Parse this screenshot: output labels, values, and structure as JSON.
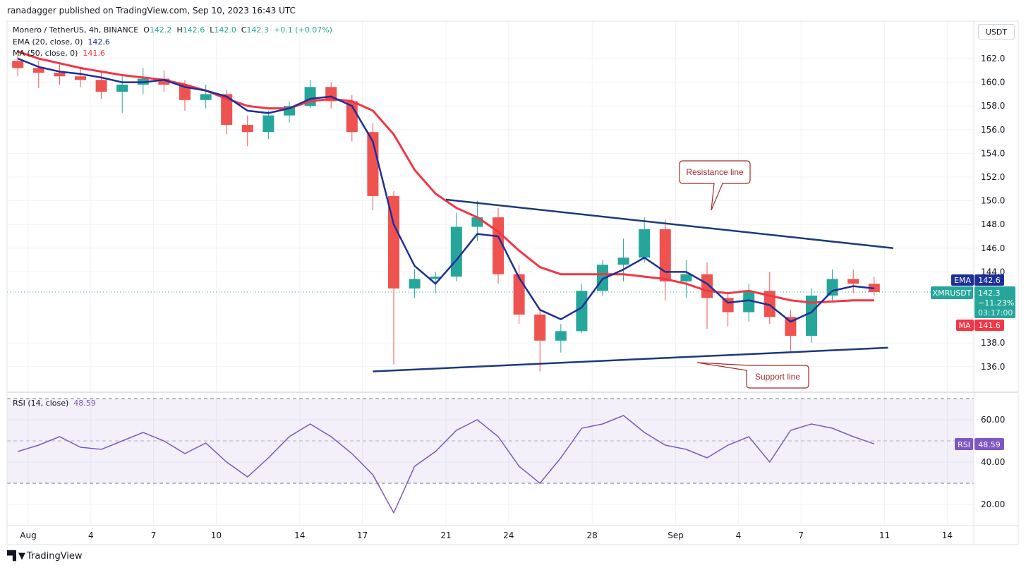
{
  "header": {
    "published": "ranadagger published on TradingView.com, Sep 10, 2023 16:43 UTC",
    "symbol": "Monero / TetherUS, 4h, BINANCE",
    "open_label": "O",
    "open": "142.2",
    "high_label": "H",
    "high": "142.6",
    "low_label": "L",
    "low": "142.0",
    "close_label": "C",
    "close": "142.3",
    "change": "+0.1 (+0.07%)",
    "ema_label": "EMA (20, close, 0)",
    "ema_value": "142.6",
    "ma_label": "MA (50, close, 0)",
    "ma_value": "141.6",
    "rsi_label": "RSI (14, close)",
    "rsi_value": "48.59"
  },
  "axis": {
    "currency": "USDT",
    "price_ticks": [
      "162.0",
      "160.0",
      "158.0",
      "156.0",
      "154.0",
      "152.0",
      "150.0",
      "148.0",
      "146.0",
      "144.0",
      "138.0",
      "136.0"
    ],
    "rsi_ticks": [
      "60.00",
      "40.00",
      "20.00"
    ],
    "time_ticks": [
      {
        "label": "Aug",
        "date": "2023-08-01"
      },
      {
        "label": "4",
        "date": "2023-08-04"
      },
      {
        "label": "7",
        "date": "2023-08-07"
      },
      {
        "label": "10",
        "date": "2023-08-10"
      },
      {
        "label": "14",
        "date": "2023-08-14"
      },
      {
        "label": "17",
        "date": "2023-08-17"
      },
      {
        "label": "21",
        "date": "2023-08-21"
      },
      {
        "label": "24",
        "date": "2023-08-24"
      },
      {
        "label": "28",
        "date": "2023-08-28"
      },
      {
        "label": "Sep",
        "date": "2023-09-01"
      },
      {
        "label": "4",
        "date": "2023-09-04"
      },
      {
        "label": "7",
        "date": "2023-09-07"
      },
      {
        "label": "11",
        "date": "2023-09-11"
      },
      {
        "label": "14",
        "date": "2023-09-14"
      }
    ]
  },
  "badges": {
    "ema_tag": "EMA",
    "ema_price": "142.6",
    "symbol_tag": "XMRUSDT",
    "last_price": "142.3",
    "last_change": "−11.23%",
    "countdown": "03:17:00",
    "ma_tag": "MA",
    "ma_price": "141.6",
    "rsi_tag": "RSI",
    "rsi_price": "48.59"
  },
  "annotations": {
    "resistance": "Resistance line",
    "support": "Support line"
  },
  "footer": {
    "brand": "TradingView"
  },
  "colors": {
    "up": "#26a69a",
    "down": "#ef5350",
    "ema": "#1e2f97",
    "ma": "#f23645",
    "rsi": "#7e57c2",
    "trendline": "#1c3a7a",
    "callout": "#a52a2a"
  },
  "chart_data": {
    "type": "candlestick",
    "interval_shown": "4h",
    "price_range": [
      135,
      163.5
    ],
    "rsi_range": [
      10,
      75
    ],
    "rsi_bands": [
      30,
      70
    ],
    "dates": [
      "2023-07-31",
      "2023-08-01",
      "2023-08-02",
      "2023-08-03",
      "2023-08-04",
      "2023-08-05",
      "2023-08-06",
      "2023-08-07",
      "2023-08-08",
      "2023-08-09",
      "2023-08-10",
      "2023-08-11",
      "2023-08-12",
      "2023-08-13",
      "2023-08-14",
      "2023-08-15",
      "2023-08-16",
      "2023-08-17",
      "2023-08-18",
      "2023-08-19",
      "2023-08-20",
      "2023-08-21",
      "2023-08-22",
      "2023-08-23",
      "2023-08-24",
      "2023-08-25",
      "2023-08-26",
      "2023-08-27",
      "2023-08-28",
      "2023-08-29",
      "2023-08-30",
      "2023-08-31",
      "2023-09-01",
      "2023-09-02",
      "2023-09-03",
      "2023-09-04",
      "2023-09-05",
      "2023-09-06",
      "2023-09-07",
      "2023-09-08",
      "2023-09-09",
      "2023-09-10"
    ],
    "ohlc": [
      [
        161.8,
        162.3,
        160.5,
        161.2
      ],
      [
        161.2,
        161.8,
        159.5,
        160.8
      ],
      [
        160.8,
        161.5,
        159.8,
        160.5
      ],
      [
        160.5,
        161.3,
        159.6,
        160.2
      ],
      [
        160.2,
        160.8,
        158.6,
        159.2
      ],
      [
        159.2,
        160.5,
        157.4,
        159.8
      ],
      [
        159.8,
        161.2,
        159.0,
        160.3
      ],
      [
        160.3,
        161.0,
        159.2,
        159.8
      ],
      [
        159.8,
        160.2,
        157.6,
        158.5
      ],
      [
        158.5,
        159.8,
        157.8,
        159.0
      ],
      [
        159.0,
        159.4,
        155.6,
        156.4
      ],
      [
        156.4,
        157.2,
        154.6,
        155.8
      ],
      [
        155.8,
        157.6,
        155.2,
        157.2
      ],
      [
        157.2,
        158.4,
        156.6,
        158.0
      ],
      [
        158.0,
        160.2,
        157.8,
        159.6
      ],
      [
        159.6,
        160.0,
        157.8,
        158.4
      ],
      [
        158.4,
        158.9,
        155.0,
        155.8
      ],
      [
        155.8,
        156.6,
        149.2,
        150.4
      ],
      [
        150.4,
        150.8,
        136.2,
        142.6
      ],
      [
        142.6,
        144.2,
        141.8,
        143.4
      ],
      [
        143.4,
        144.0,
        142.2,
        143.6
      ],
      [
        143.6,
        149.0,
        143.2,
        147.8
      ],
      [
        147.8,
        150.0,
        146.6,
        148.6
      ],
      [
        148.6,
        149.4,
        143.0,
        143.8
      ],
      [
        143.8,
        144.6,
        139.6,
        140.4
      ],
      [
        140.4,
        140.8,
        135.6,
        138.2
      ],
      [
        138.2,
        139.6,
        137.2,
        139.0
      ],
      [
        139.0,
        143.0,
        138.8,
        142.4
      ],
      [
        142.4,
        145.0,
        142.0,
        144.6
      ],
      [
        144.6,
        146.8,
        143.2,
        145.2
      ],
      [
        145.2,
        148.6,
        144.8,
        147.6
      ],
      [
        147.6,
        148.4,
        141.6,
        143.2
      ],
      [
        143.2,
        145.0,
        141.8,
        143.8
      ],
      [
        143.8,
        144.8,
        139.2,
        141.8
      ],
      [
        141.8,
        142.2,
        139.4,
        140.6
      ],
      [
        140.6,
        143.0,
        139.8,
        142.4
      ],
      [
        142.4,
        144.0,
        139.6,
        140.2
      ],
      [
        140.2,
        140.8,
        137.2,
        138.6
      ],
      [
        138.6,
        142.6,
        138.0,
        142.0
      ],
      [
        142.0,
        144.2,
        141.6,
        143.4
      ],
      [
        143.4,
        144.2,
        142.2,
        143.0
      ],
      [
        143.0,
        143.6,
        142.0,
        142.3
      ]
    ],
    "ema20": [
      162.0,
      161.3,
      160.9,
      160.7,
      160.4,
      160.0,
      160.0,
      160.2,
      159.6,
      159.3,
      158.8,
      157.6,
      157.4,
      157.8,
      158.6,
      158.8,
      158.0,
      155.0,
      148.0,
      144.5,
      143.0,
      145.0,
      147.2,
      147.0,
      143.5,
      140.8,
      140.0,
      141.0,
      143.4,
      144.2,
      145.2,
      144.0,
      144.0,
      143.0,
      141.4,
      141.6,
      141.2,
      139.8,
      140.6,
      142.4,
      142.8,
      142.6
    ],
    "ma50": [
      162.6,
      162.0,
      161.6,
      161.2,
      160.9,
      160.6,
      160.4,
      160.2,
      159.8,
      159.3,
      158.6,
      158.0,
      157.8,
      157.8,
      158.4,
      158.6,
      158.4,
      157.6,
      155.6,
      152.6,
      150.6,
      149.4,
      148.6,
      147.4,
      145.8,
      144.4,
      143.8,
      143.8,
      143.8,
      143.8,
      143.6,
      143.4,
      143.0,
      142.4,
      142.2,
      142.4,
      142.0,
      141.6,
      141.4,
      141.5,
      141.6,
      141.6
    ],
    "rsi": [
      45,
      48,
      52,
      47,
      46,
      50,
      54,
      50,
      44,
      49,
      40,
      33,
      42,
      52,
      58,
      52,
      44,
      34,
      16,
      38,
      45,
      55,
      60,
      52,
      38,
      30,
      42,
      56,
      58,
      62,
      54,
      48,
      46,
      42,
      48,
      52,
      40,
      55,
      58,
      56,
      52,
      48.59
    ],
    "last_price": 142.3,
    "trendlines": [
      {
        "name": "Resistance line",
        "from": [
          "2023-08-21 00:00",
          150.1
        ],
        "to": [
          "2023-09-11 10:00",
          146.0
        ]
      },
      {
        "name": "Support line",
        "from": [
          "2023-08-17 12:00",
          135.6
        ],
        "to": [
          "2023-09-11 04:00",
          137.6
        ]
      }
    ]
  }
}
